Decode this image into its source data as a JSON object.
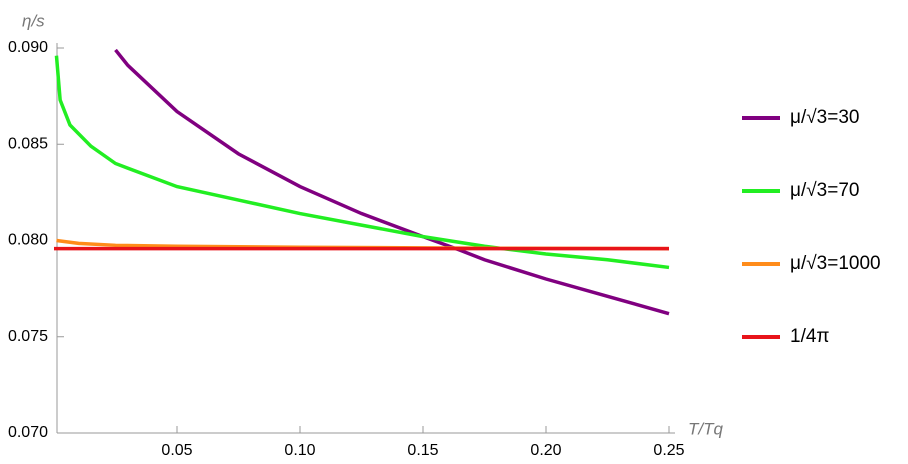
{
  "chart_data": {
    "type": "line",
    "xlabel": "T/Tq",
    "ylabel": "η/s",
    "xlim": [
      0,
      0.25
    ],
    "ylim": [
      0.07,
      0.09
    ],
    "xticks": [
      {
        "value": 0.05,
        "label": "0.05"
      },
      {
        "value": 0.1,
        "label": "0.10"
      },
      {
        "value": 0.15,
        "label": "0.15"
      },
      {
        "value": 0.2,
        "label": "0.20"
      },
      {
        "value": 0.25,
        "label": "0.25"
      }
    ],
    "yticks": [
      {
        "value": 0.07,
        "label": "0.070"
      },
      {
        "value": 0.075,
        "label": "0.075"
      },
      {
        "value": 0.08,
        "label": "0.080"
      },
      {
        "value": 0.085,
        "label": "0.085"
      },
      {
        "value": 0.09,
        "label": "0.090"
      }
    ],
    "series": [
      {
        "name": "μ/√3=30",
        "color": "#800080",
        "x": [
          0.025,
          0.03,
          0.05,
          0.075,
          0.1,
          0.125,
          0.15,
          0.165,
          0.175,
          0.2,
          0.225,
          0.25
        ],
        "values": [
          0.0899,
          0.0891,
          0.0867,
          0.0845,
          0.0828,
          0.0814,
          0.0802,
          0.0795,
          0.079,
          0.078,
          0.0771,
          0.0762
        ]
      },
      {
        "name": "μ/√3=70",
        "color": "#22ee22",
        "x": [
          0.001,
          0.0025,
          0.0065,
          0.015,
          0.025,
          0.05,
          0.075,
          0.1,
          0.125,
          0.15,
          0.175,
          0.2,
          0.225,
          0.25
        ],
        "values": [
          0.0896,
          0.0873,
          0.086,
          0.0849,
          0.084,
          0.0828,
          0.0821,
          0.0814,
          0.0808,
          0.0802,
          0.0797,
          0.0793,
          0.079,
          0.0786
        ]
      },
      {
        "name": "μ/√3=1000",
        "color": "#ff8c1a",
        "x": [
          0.001,
          0.01,
          0.025,
          0.05,
          0.1,
          0.15,
          0.18,
          0.25
        ],
        "values": [
          0.08,
          0.07985,
          0.07975,
          0.0797,
          0.07965,
          0.07962,
          0.0796,
          0.07958
        ]
      },
      {
        "name": "1/4π",
        "color": "#e8141a",
        "x": [
          0,
          0.25
        ],
        "values": [
          0.07958,
          0.07958
        ]
      }
    ]
  }
}
